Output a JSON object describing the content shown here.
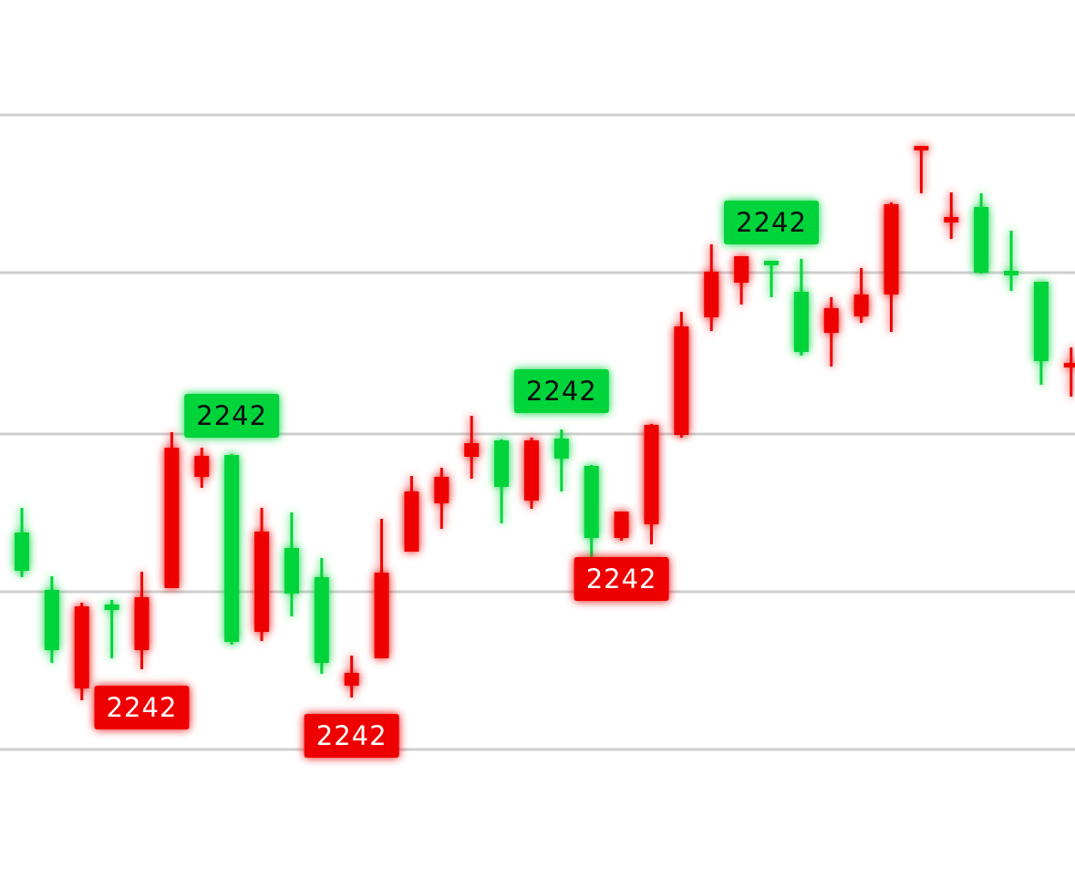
{
  "chart_data": {
    "type": "candlestick",
    "ylim": [
      0,
      9.75
    ],
    "grid": true,
    "gridlines_y": [
      8.49,
      6.76,
      4.99,
      3.26,
      1.53
    ],
    "colors": {
      "up": "#00D43A",
      "down": "#EE0000",
      "grid": "#cfcfcf",
      "up_text": "#111111",
      "down_text": "#ffffff"
    },
    "candles": [
      {
        "x": 1,
        "dir": "up",
        "open": 3.49,
        "close": 3.91,
        "high": 4.18,
        "low": 3.42
      },
      {
        "x": 2,
        "dir": "up",
        "open": 2.62,
        "close": 3.28,
        "high": 3.43,
        "low": 2.48
      },
      {
        "x": 3,
        "dir": "down",
        "open": 3.1,
        "close": 2.2,
        "high": 3.14,
        "low": 2.07
      },
      {
        "x": 4,
        "dir": "up",
        "open": 3.06,
        "close": 3.12,
        "high": 3.17,
        "low": 2.53
      },
      {
        "x": 5,
        "dir": "down",
        "open": 3.2,
        "close": 2.62,
        "high": 3.48,
        "low": 2.41
      },
      {
        "x": 6,
        "dir": "down",
        "open": 4.84,
        "close": 3.3,
        "high": 5.01,
        "low": 3.3
      },
      {
        "x": 7,
        "dir": "down",
        "open": 4.75,
        "close": 4.52,
        "high": 4.84,
        "low": 4.4
      },
      {
        "x": 8,
        "dir": "up",
        "open": 2.71,
        "close": 4.76,
        "high": 4.77,
        "low": 2.68
      },
      {
        "x": 9,
        "dir": "down",
        "open": 3.92,
        "close": 2.82,
        "high": 4.18,
        "low": 2.72
      },
      {
        "x": 10,
        "dir": "up",
        "open": 3.24,
        "close": 3.74,
        "high": 4.13,
        "low": 2.99
      },
      {
        "x": 11,
        "dir": "up",
        "open": 2.48,
        "close": 3.42,
        "high": 3.63,
        "low": 2.36
      },
      {
        "x": 12,
        "dir": "down",
        "open": 2.37,
        "close": 2.23,
        "high": 2.56,
        "low": 2.1
      },
      {
        "x": 13,
        "dir": "down",
        "open": 3.47,
        "close": 2.53,
        "high": 4.06,
        "low": 2.53
      },
      {
        "x": 14,
        "dir": "down",
        "open": 4.36,
        "close": 3.7,
        "high": 4.53,
        "low": 3.7
      },
      {
        "x": 15,
        "dir": "down",
        "open": 4.52,
        "close": 4.23,
        "high": 4.62,
        "low": 3.95
      },
      {
        "x": 16,
        "dir": "down",
        "open": 4.89,
        "close": 4.74,
        "high": 5.19,
        "low": 4.5
      },
      {
        "x": 17,
        "dir": "up",
        "open": 4.41,
        "close": 4.92,
        "high": 4.93,
        "low": 4.01
      },
      {
        "x": 18,
        "dir": "down",
        "open": 4.92,
        "close": 4.26,
        "high": 4.95,
        "low": 4.17
      },
      {
        "x": 19,
        "dir": "up",
        "open": 4.72,
        "close": 4.94,
        "high": 5.04,
        "low": 4.36
      },
      {
        "x": 20,
        "dir": "up",
        "open": 3.85,
        "close": 4.64,
        "high": 4.65,
        "low": 3.47
      },
      {
        "x": 21,
        "dir": "down",
        "open": 4.14,
        "close": 3.85,
        "high": 4.14,
        "low": 3.82
      },
      {
        "x": 22,
        "dir": "down",
        "open": 5.09,
        "close": 4.0,
        "high": 5.1,
        "low": 3.78
      },
      {
        "x": 23,
        "dir": "down",
        "open": 6.17,
        "close": 4.98,
        "high": 6.33,
        "low": 4.95
      },
      {
        "x": 24,
        "dir": "down",
        "open": 6.77,
        "close": 6.27,
        "high": 7.07,
        "low": 6.12
      },
      {
        "x": 25,
        "dir": "down",
        "open": 6.94,
        "close": 6.65,
        "high": 6.94,
        "low": 6.41
      },
      {
        "x": 26,
        "dir": "up",
        "open": 6.84,
        "close": 6.89,
        "high": 6.89,
        "low": 6.49
      },
      {
        "x": 27,
        "dir": "up",
        "open": 5.89,
        "close": 6.55,
        "high": 6.91,
        "low": 5.85
      },
      {
        "x": 28,
        "dir": "down",
        "open": 6.37,
        "close": 6.1,
        "high": 6.49,
        "low": 5.73
      },
      {
        "x": 29,
        "dir": "down",
        "open": 6.52,
        "close": 6.28,
        "high": 6.81,
        "low": 6.21
      },
      {
        "x": 30,
        "dir": "down",
        "open": 7.51,
        "close": 6.52,
        "high": 7.53,
        "low": 6.11
      },
      {
        "x": 31,
        "dir": "down",
        "open": 8.15,
        "close": 8.15,
        "high": 8.15,
        "low": 7.63
      },
      {
        "x": 32,
        "dir": "down",
        "open": 7.37,
        "close": 7.31,
        "high": 7.64,
        "low": 7.13
      },
      {
        "x": 33,
        "dir": "up",
        "open": 6.76,
        "close": 7.48,
        "high": 7.63,
        "low": 6.75
      },
      {
        "x": 34,
        "dir": "up",
        "open": 6.74,
        "close": 6.78,
        "high": 7.22,
        "low": 6.56
      },
      {
        "x": 35,
        "dir": "up",
        "open": 5.79,
        "close": 6.66,
        "high": 6.66,
        "low": 5.53
      },
      {
        "x": 36,
        "dir": "down",
        "open": 5.77,
        "close": 5.73,
        "high": 5.94,
        "low": 5.4
      }
    ],
    "annotations": [
      {
        "text": "2242",
        "dir": "up",
        "candle": 8
      },
      {
        "text": "2242",
        "dir": "down",
        "candle": 5
      },
      {
        "text": "2242",
        "dir": "down",
        "candle": 12
      },
      {
        "text": "2242",
        "dir": "up",
        "candle": 19
      },
      {
        "text": "2242",
        "dir": "down",
        "candle": 21
      },
      {
        "text": "2242",
        "dir": "up",
        "candle": 26
      }
    ]
  }
}
